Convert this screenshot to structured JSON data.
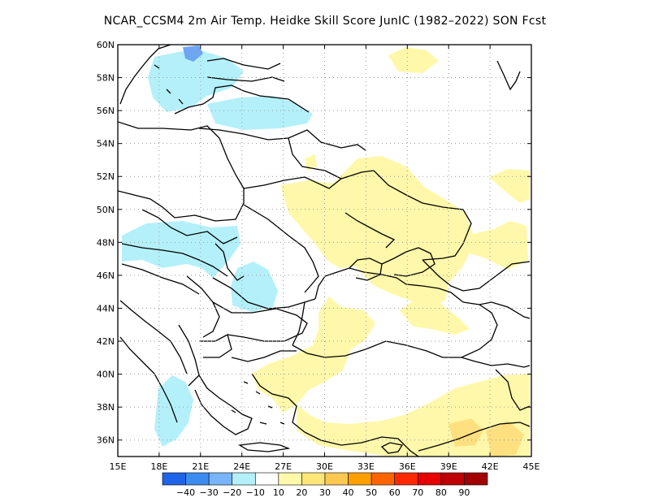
{
  "title": "NCAR_CCSM4   2m Air Temp. Heidke Skill Score JunIC (1982–2022) SON Fcst",
  "map": {
    "lon_ticks": [
      "15E",
      "18E",
      "21E",
      "24E",
      "27E",
      "30E",
      "33E",
      "36E",
      "39E",
      "42E",
      "45E"
    ],
    "lat_ticks": [
      "60N",
      "58N",
      "56N",
      "54N",
      "52N",
      "50N",
      "48N",
      "46N",
      "44N",
      "42N",
      "40N",
      "38N",
      "36N"
    ],
    "lon_range": [
      15,
      45
    ],
    "lat_range": [
      35,
      60
    ],
    "grid": "dotted",
    "colors": {
      "negative_10_20": "#b4f0fa",
      "negative_30_40": "#4b8ef0",
      "positive_10_20": "#fff8aa",
      "positive_20_30": "#ffe080",
      "land_borders": "#000000"
    }
  },
  "colorbar": {
    "labels": [
      "−40",
      "−30",
      "−20",
      "−10",
      "10",
      "20",
      "30",
      "40",
      "50",
      "60",
      "70",
      "80",
      "90"
    ],
    "colors": [
      "#1e64e8",
      "#3c8cf0",
      "#78b4fa",
      "#b4f0fa",
      "#ffffff",
      "#fffaaa",
      "#ffe678",
      "#ffc850",
      "#ffa000",
      "#ff6400",
      "#ff2800",
      "#e60000",
      "#c00000",
      "#a00000"
    ]
  }
}
